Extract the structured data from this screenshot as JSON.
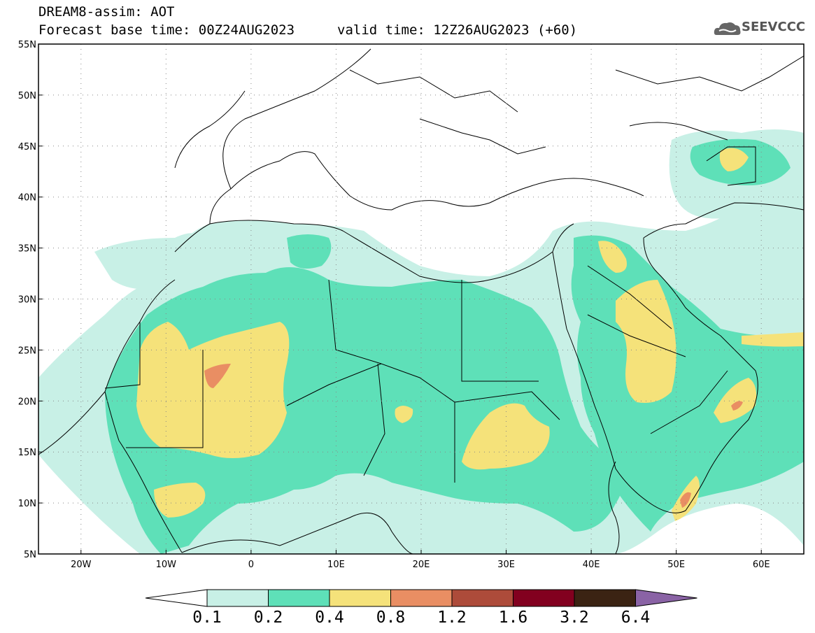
{
  "header": {
    "title": "DREAM8-assim: AOT",
    "forecast_base": "Forecast base time: 00Z24AUG2023",
    "valid": "valid time: 12Z26AUG2023 (+60)"
  },
  "logo": {
    "text": "SEEVCCC",
    "icon": "cloud-logo-icon"
  },
  "map": {
    "lat_labels": [
      "55N",
      "50N",
      "45N",
      "40N",
      "35N",
      "30N",
      "25N",
      "20N",
      "15N",
      "10N",
      "5N"
    ],
    "lon_labels": [
      "20W",
      "10W",
      "0",
      "10E",
      "20E",
      "30E",
      "40E",
      "50E",
      "60E"
    ],
    "lat_range": [
      5,
      55
    ],
    "lon_range": [
      -25,
      65
    ]
  },
  "colorbar": {
    "labels": [
      "0.1",
      "0.2",
      "0.4",
      "0.8",
      "1.2",
      "1.6",
      "3.2",
      "6.4"
    ],
    "colors": [
      "#ffffff",
      "#c8f0e6",
      "#5ee0b8",
      "#f5e27a",
      "#e98e63",
      "#ad4b3a",
      "#82001f",
      "#3b2313",
      "#8a63a5"
    ]
  }
}
